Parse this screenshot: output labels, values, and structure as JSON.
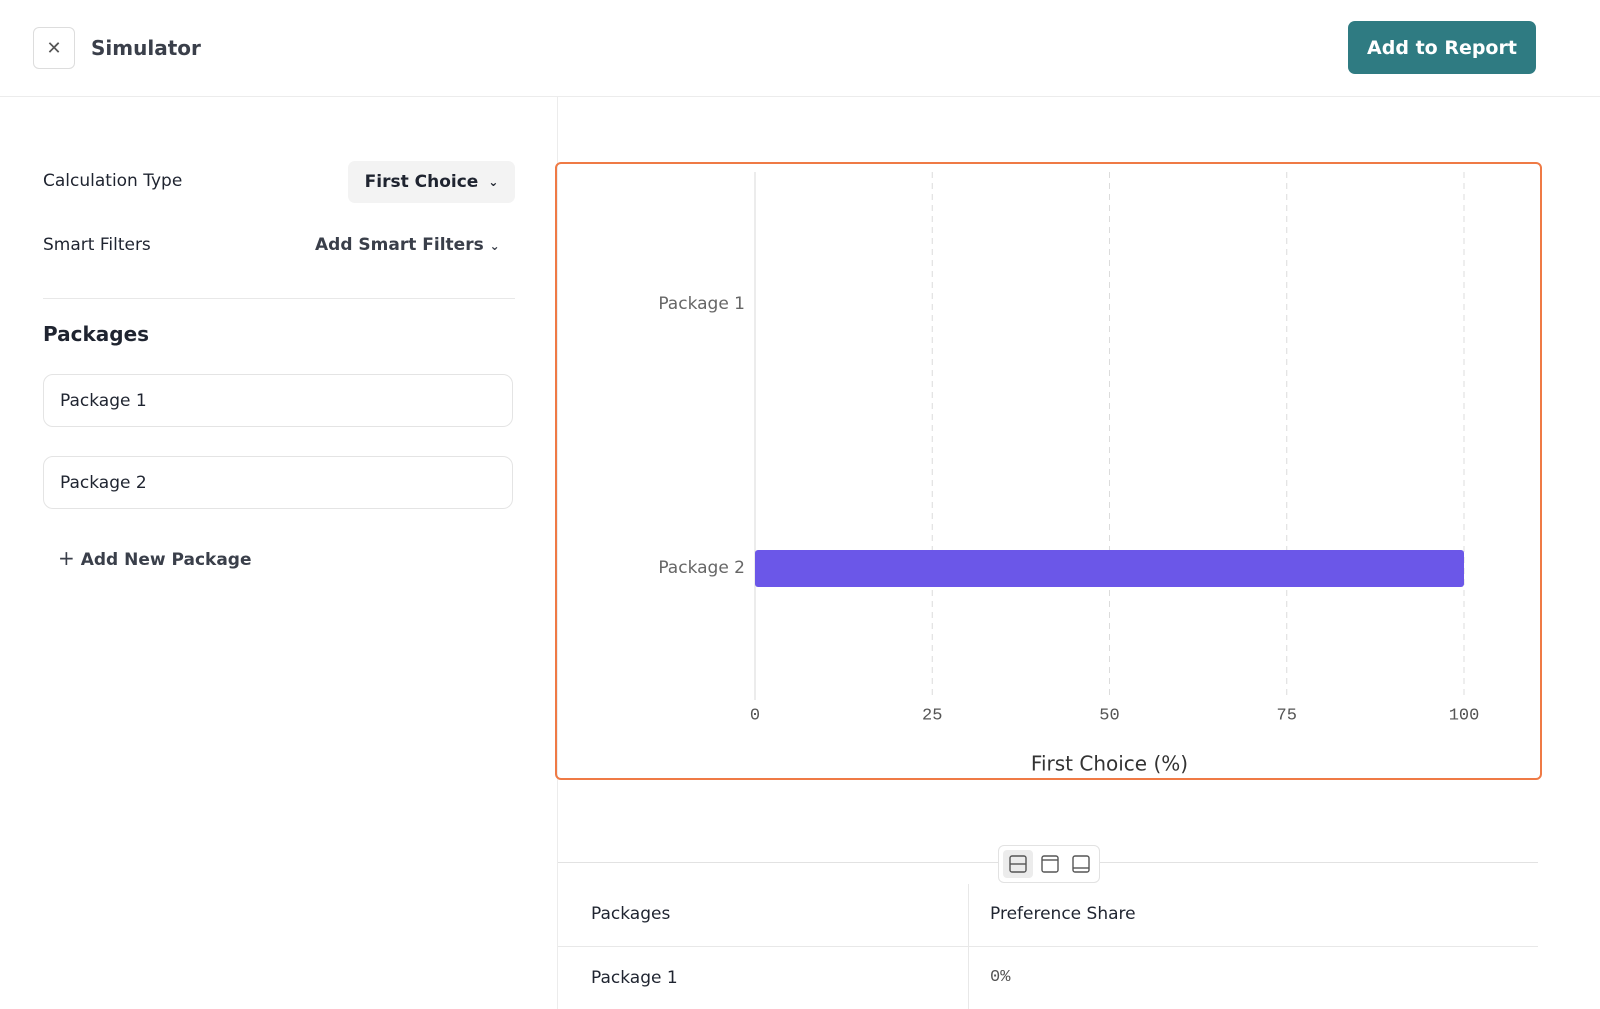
{
  "header": {
    "title": "Simulator",
    "action": "Add to Report"
  },
  "sidebar": {
    "calculation_label": "Calculation Type",
    "calculation_value": "First Choice",
    "filters_label": "Smart Filters",
    "filters_value": "Add Smart Filters",
    "packages_title": "Packages",
    "packages": [
      "Package 1",
      "Package 2"
    ],
    "add_package": "Add New Package"
  },
  "chart_data": {
    "type": "hbar",
    "categories": [
      "Package 1",
      "Package 2"
    ],
    "values": [
      0,
      100
    ],
    "color": "#6b57e8",
    "xlim": [
      0,
      100
    ],
    "xticks": [
      0,
      25,
      50,
      75,
      100
    ],
    "grid": true,
    "xlabel": "First Choice (%)"
  },
  "table": {
    "columns": [
      "Packages",
      "Preference Share"
    ],
    "rows": [
      [
        "Package 1",
        "0%"
      ]
    ]
  }
}
